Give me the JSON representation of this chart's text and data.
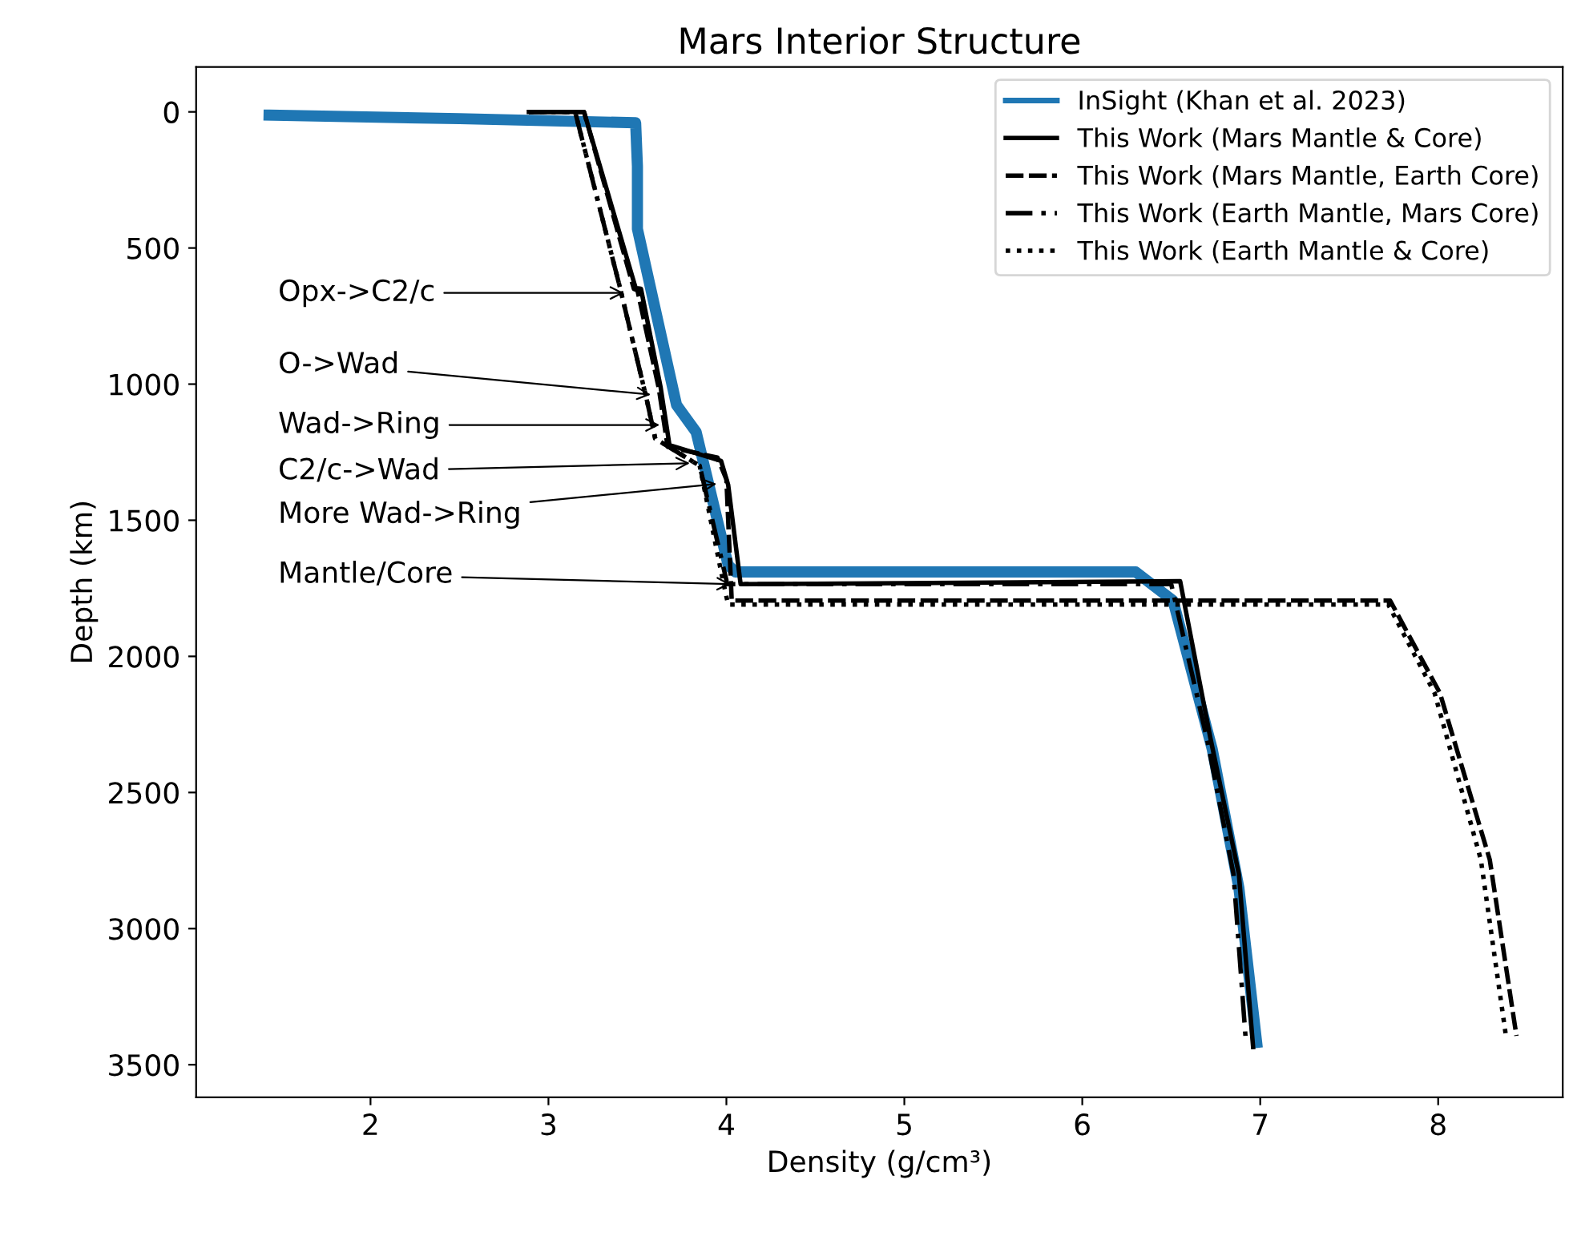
{
  "chart_data": {
    "type": "line",
    "title": "Mars Interior Structure",
    "xlabel": "Density (g/cm³)",
    "ylabel": "Depth (km)",
    "xlim": [
      1.02,
      8.7
    ],
    "ylim": [
      3620,
      -165
    ],
    "xticks": [
      2,
      3,
      4,
      5,
      6,
      7,
      8
    ],
    "yticks": [
      0,
      500,
      1000,
      1500,
      2000,
      2500,
      3000,
      3500
    ],
    "grid": false,
    "legend": "top right",
    "marker": "none",
    "series": [
      {
        "name": "InSight (Khan et al. 2023)",
        "color": "#1f77b4",
        "line_style": "solid",
        "x": [
          1.43,
          2.5,
          3.49,
          3.5,
          3.5,
          3.72,
          3.83,
          4.01,
          4.05,
          6.3,
          6.51,
          6.73,
          6.88,
          6.98
        ],
        "values": [
          12,
          25,
          40,
          200,
          430,
          1077,
          1176,
          1665,
          1690,
          1690,
          1795,
          2340,
          2850,
          3418
        ]
      },
      {
        "name": "This Work (Mars Mantle & Core)",
        "color": "#000000",
        "line_style": "solid",
        "x": [
          2.89,
          3.2,
          3.49,
          3.52,
          3.63,
          3.68,
          3.97,
          4.01,
          4.08,
          6.55,
          6.72,
          6.88,
          6.96
        ],
        "values": [
          0,
          0,
          647,
          650,
          1010,
          1224,
          1282,
          1370,
          1735,
          1724,
          2300,
          2800,
          3435
        ]
      },
      {
        "name": "This Work (Mars Mantle, Earth Core)",
        "color": "#000000",
        "line_style": "dashed",
        "x": [
          2.89,
          3.2,
          3.48,
          3.5,
          3.62,
          3.67,
          3.95,
          4.0,
          4.03,
          7.73,
          8.01,
          8.29,
          8.44
        ],
        "values": [
          0,
          0,
          650,
          655,
          1015,
          1230,
          1270,
          1350,
          1795,
          1795,
          2135,
          2747,
          3394
        ]
      },
      {
        "name": "This Work (Earth Mantle, Mars Core)",
        "color": "#000000",
        "line_style": "dashdot",
        "x": [
          2.89,
          3.15,
          3.4,
          3.55,
          3.6,
          3.85,
          4.0,
          4.0,
          6.5,
          6.7,
          6.85,
          6.92
        ],
        "values": [
          0,
          0,
          640,
          1050,
          1200,
          1300,
          1720,
          1735,
          1735,
          2300,
          2800,
          3420
        ]
      },
      {
        "name": "This Work (Earth Mantle & Core)",
        "color": "#000000",
        "line_style": "dotted",
        "x": [
          2.89,
          3.15,
          3.4,
          3.55,
          3.6,
          3.85,
          3.98,
          4.01,
          7.72,
          7.98,
          8.24,
          8.38
        ],
        "values": [
          0,
          0,
          640,
          1050,
          1200,
          1300,
          1720,
          1810,
          1810,
          2135,
          2747,
          3390
        ]
      }
    ],
    "annotations": [
      {
        "text": "Opx->C2/c",
        "x": 3.45,
        "y": 665
      },
      {
        "text": "O->Wad",
        "x": 3.6,
        "y": 1040
      },
      {
        "text": "Wad->Ring",
        "x": 3.65,
        "y": 1150
      },
      {
        "text": "C2/c->Wad",
        "x": 3.82,
        "y": 1290
      },
      {
        "text": "More Wad->Ring",
        "x": 3.97,
        "y": 1365
      },
      {
        "text": "Mantle/Core",
        "x": 4.05,
        "y": 1735
      }
    ]
  }
}
